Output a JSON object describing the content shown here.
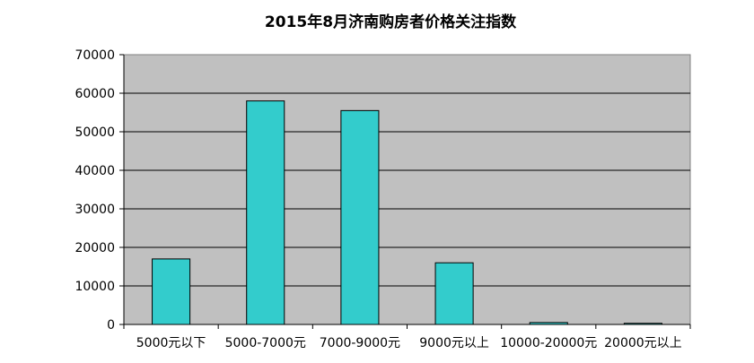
{
  "chart_data": {
    "type": "bar",
    "title": "2015年8月济南购房者价格关注指数",
    "xlabel": "",
    "ylabel": "",
    "categories": [
      "5000元以下",
      "5000-7000元",
      "7000-9000元",
      "9000元以上",
      "10000-20000元",
      "20000元以上"
    ],
    "values": [
      17000,
      58000,
      55500,
      16000,
      500,
      300
    ],
    "ylim": [
      0,
      70000
    ],
    "yticks": [
      "0",
      "10000",
      "20000",
      "30000",
      "40000",
      "50000",
      "60000",
      "70000"
    ],
    "grid": true,
    "legend": "none",
    "colors": {
      "bar": "#33cccc",
      "plot_bg": "#c0c0c0",
      "grid": "#000000"
    }
  }
}
